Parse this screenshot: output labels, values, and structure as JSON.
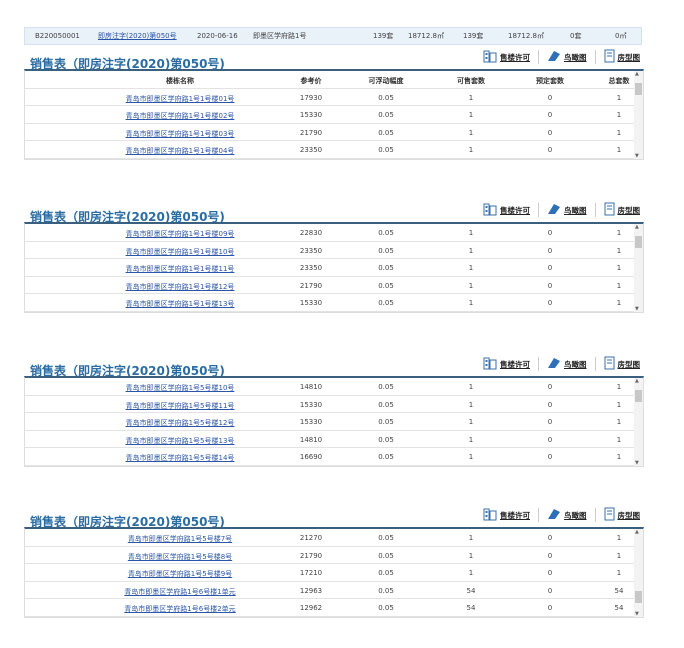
{
  "info": {
    "code": "B220050001",
    "permit": "即房注字(2020)第050号",
    "date": "2020-06-16",
    "address": "即墨区学府路1号",
    "sets1": "139套",
    "area1": "18712.8㎡",
    "sets2": "139套",
    "area2": "18712.8㎡",
    "sets3": "0套",
    "area3": "0㎡"
  },
  "toolbar": {
    "permit": "售楼许可",
    "aerial": "鸟瞰图",
    "layout": "房型图"
  },
  "headers": [
    "楼栋名称",
    "参考价",
    "可浮动幅度",
    "可售套数",
    "预定套数",
    "总套数"
  ],
  "sections": [
    {
      "title": "销售表（即房注字(2020)第050号)",
      "show_header": true,
      "rows": [
        [
          "青岛市即墨区学府路1号1号楼01号",
          "17930",
          "0.05",
          "1",
          "0",
          "1"
        ],
        [
          "青岛市即墨区学府路1号1号楼02号",
          "15330",
          "0.05",
          "1",
          "0",
          "1"
        ],
        [
          "青岛市即墨区学府路1号1号楼03号",
          "21790",
          "0.05",
          "1",
          "0",
          "1"
        ],
        [
          "青岛市即墨区学府路1号1号楼04号",
          "23350",
          "0.05",
          "1",
          "0",
          "1"
        ]
      ]
    },
    {
      "title": "销售表（即房注字(2020)第050号)",
      "show_header": false,
      "rows": [
        [
          "青岛市即墨区学府路1号1号楼09号",
          "22830",
          "0.05",
          "1",
          "0",
          "1"
        ],
        [
          "青岛市即墨区学府路1号1号楼10号",
          "23350",
          "0.05",
          "1",
          "0",
          "1"
        ],
        [
          "青岛市即墨区学府路1号1号楼11号",
          "23350",
          "0.05",
          "1",
          "0",
          "1"
        ],
        [
          "青岛市即墨区学府路1号1号楼12号",
          "21790",
          "0.05",
          "1",
          "0",
          "1"
        ],
        [
          "青岛市即墨区学府路1号1号楼13号",
          "15330",
          "0.05",
          "1",
          "0",
          "1"
        ]
      ]
    },
    {
      "title": "销售表（即房注字(2020)第050号)",
      "show_header": false,
      "rows": [
        [
          "青岛市即墨区学府路1号5号楼10号",
          "14810",
          "0.05",
          "1",
          "0",
          "1"
        ],
        [
          "青岛市即墨区学府路1号5号楼11号",
          "15330",
          "0.05",
          "1",
          "0",
          "1"
        ],
        [
          "青岛市即墨区学府路1号5号楼12号",
          "15330",
          "0.05",
          "1",
          "0",
          "1"
        ],
        [
          "青岛市即墨区学府路1号5号楼13号",
          "14810",
          "0.05",
          "1",
          "0",
          "1"
        ],
        [
          "青岛市即墨区学府路1号5号楼14号",
          "16690",
          "0.05",
          "1",
          "0",
          "1"
        ]
      ]
    },
    {
      "title": "销售表（即房注字(2020)第050号)",
      "show_header": false,
      "rows": [
        [
          "青岛市即墨区学府路1号5号楼7号",
          "21270",
          "0.05",
          "1",
          "0",
          "1"
        ],
        [
          "青岛市即墨区学府路1号5号楼8号",
          "21790",
          "0.05",
          "1",
          "0",
          "1"
        ],
        [
          "青岛市即墨区学府路1号5号楼9号",
          "17210",
          "0.05",
          "1",
          "0",
          "1"
        ],
        [
          "青岛市即墨区学府路1号6号楼1单元",
          "12963",
          "0.05",
          "54",
          "0",
          "54"
        ],
        [
          "青岛市即墨区学府路1号6号楼2单元",
          "12962",
          "0.05",
          "54",
          "0",
          "54"
        ]
      ]
    }
  ]
}
